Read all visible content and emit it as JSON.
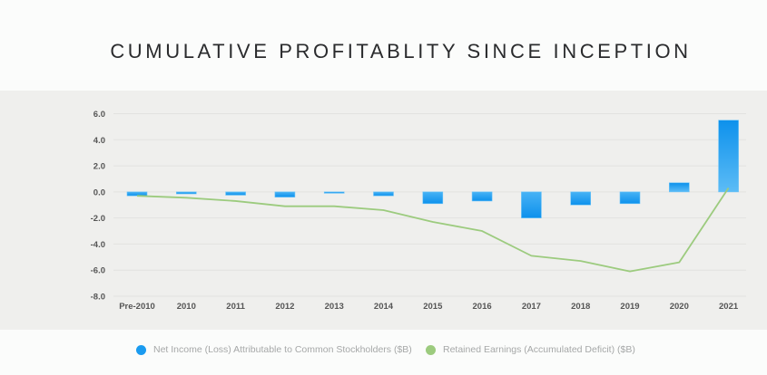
{
  "chart_data": {
    "type": "bar",
    "title": "CUMULATIVE PROFITABLITY SINCE INCEPTION",
    "xlabel": "",
    "ylabel": "",
    "ylim": [
      -8.0,
      6.0
    ],
    "yticks": [
      "6.0",
      "4.0",
      "2.0",
      "0.0",
      "-2.0",
      "-4.0",
      "-6.0",
      "-8.0"
    ],
    "ytick_values": [
      6,
      4,
      2,
      0,
      -2,
      -4,
      -6,
      -8
    ],
    "grid": true,
    "legend_position": "bottom",
    "categories": [
      "Pre-2010",
      "2010",
      "2011",
      "2012",
      "2013",
      "2014",
      "2015",
      "2016",
      "2017",
      "2018",
      "2019",
      "2020",
      "2021"
    ],
    "series": [
      {
        "name": "Net Income (Loss) Attributable to Common Stockholders ($B)",
        "type": "bar",
        "color": "#1a9bf0",
        "values": [
          -0.3,
          -0.15,
          -0.25,
          -0.4,
          -0.07,
          -0.3,
          -0.9,
          -0.7,
          -2.0,
          -1.0,
          -0.9,
          0.7,
          5.5
        ]
      },
      {
        "name": "Retained Earnings (Accumulated Deficit) ($B)",
        "type": "line",
        "color": "#9ccb7e",
        "values": [
          -0.3,
          -0.45,
          -0.7,
          -1.1,
          -1.1,
          -1.4,
          -2.3,
          -3.0,
          -4.9,
          -5.3,
          -6.1,
          -5.4,
          0.3
        ]
      }
    ]
  }
}
